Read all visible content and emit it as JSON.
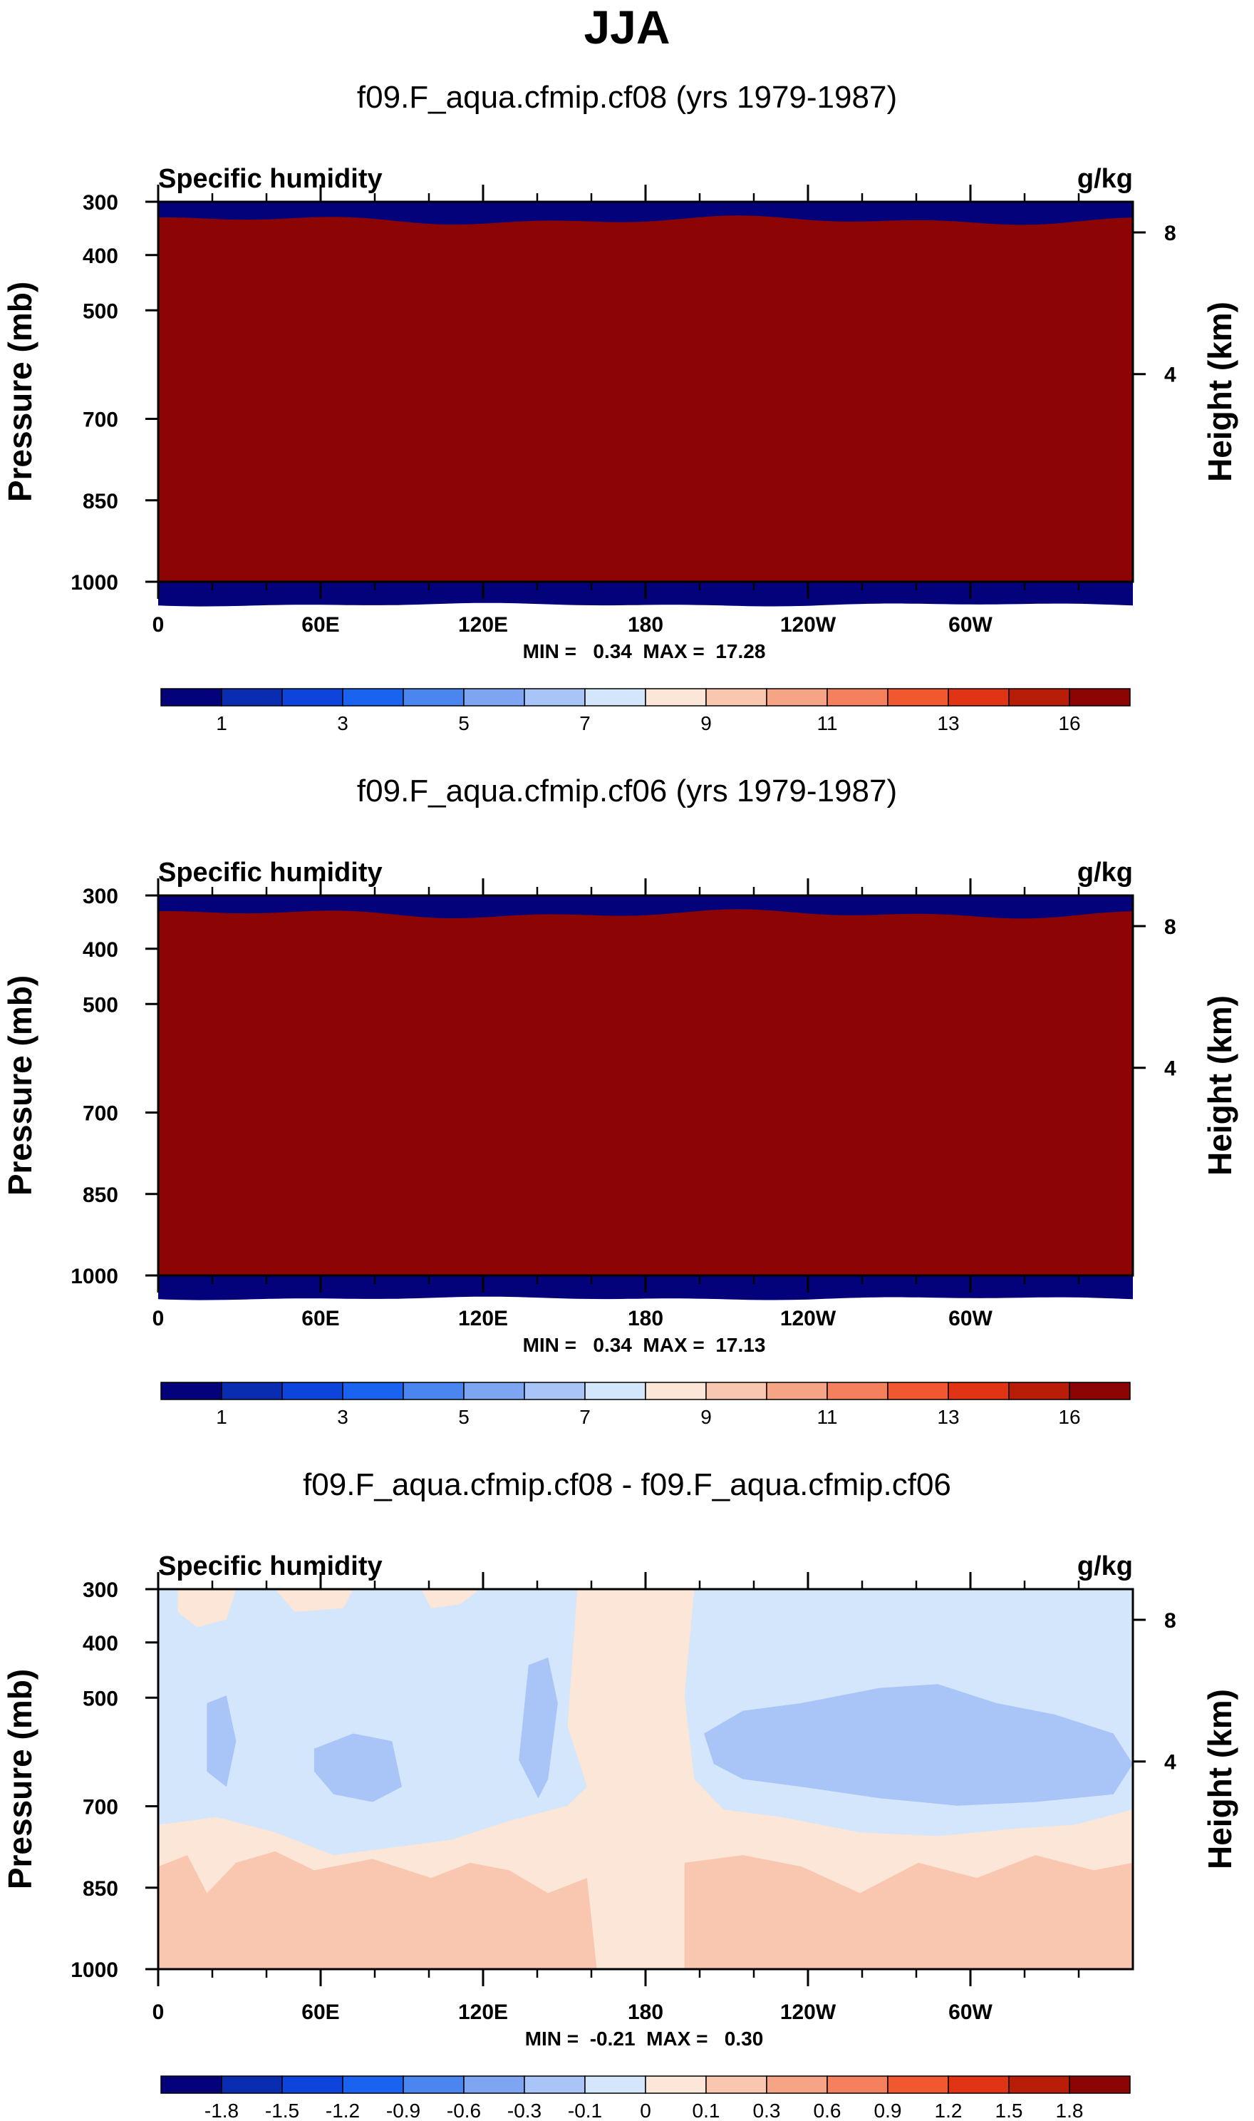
{
  "page": {
    "title": "JJA"
  },
  "chart_data": [
    {
      "type": "heatmap",
      "title": "f09.F_aqua.cfmip.cf08 (yrs 1979-1987)",
      "left_label": "Specific humidity",
      "units": "g/kg",
      "ylabel": "Pressure (mb)",
      "y2label": "Height (km)",
      "x_ticks": [
        "0",
        "60E",
        "120E",
        "180",
        "120W",
        "60W"
      ],
      "y_ticks": [
        "300",
        "400",
        "500",
        "700",
        "850",
        "1000"
      ],
      "y2_ticks": [
        "8",
        "4"
      ],
      "stats": "MIN =   0.34  MAX =  17.28",
      "min": 0.34,
      "max": 17.28,
      "pattern": "bands",
      "band_levels": [
        0.5,
        1,
        2,
        3,
        4,
        5,
        6,
        7,
        8,
        9,
        10,
        11,
        12,
        13,
        14,
        16
      ],
      "colorbar_labels": [
        "1",
        "3",
        "5",
        "7",
        "9",
        "11",
        "13",
        "16"
      ]
    },
    {
      "type": "heatmap",
      "title": "f09.F_aqua.cfmip.cf06 (yrs 1979-1987)",
      "left_label": "Specific humidity",
      "units": "g/kg",
      "ylabel": "Pressure (mb)",
      "y2label": "Height (km)",
      "x_ticks": [
        "0",
        "60E",
        "120E",
        "180",
        "120W",
        "60W"
      ],
      "y_ticks": [
        "300",
        "400",
        "500",
        "700",
        "850",
        "1000"
      ],
      "y2_ticks": [
        "8",
        "4"
      ],
      "stats": "MIN =   0.34  MAX =  17.13",
      "min": 0.34,
      "max": 17.13,
      "pattern": "bands",
      "band_levels": [
        0.5,
        1,
        2,
        3,
        4,
        5,
        6,
        7,
        8,
        9,
        10,
        11,
        12,
        13,
        14,
        16
      ],
      "colorbar_labels": [
        "1",
        "3",
        "5",
        "7",
        "9",
        "11",
        "13",
        "16"
      ]
    },
    {
      "type": "heatmap",
      "title": "f09.F_aqua.cfmip.cf08 - f09.F_aqua.cfmip.cf06",
      "left_label": "Specific humidity",
      "units": "g/kg",
      "ylabel": "Pressure (mb)",
      "y2label": "Height (km)",
      "x_ticks": [
        "0",
        "60E",
        "120E",
        "180",
        "120W",
        "60W"
      ],
      "y_ticks": [
        "300",
        "400",
        "500",
        "700",
        "850",
        "1000"
      ],
      "y2_ticks": [
        "8",
        "4"
      ],
      "stats": "MIN =  -0.21  MAX =   0.30",
      "min": -0.21,
      "max": 0.3,
      "pattern": "difference",
      "colorbar_labels": [
        "-1.8",
        "-1.5",
        "-1.2",
        "-0.9",
        "-0.6",
        "-0.3",
        "-0.1",
        "0",
        "0.1",
        "0.3",
        "0.6",
        "0.9",
        "1.2",
        "1.5",
        "1.8"
      ]
    }
  ],
  "colors": {
    "palette": [
      "#04027a",
      "#0a2cb0",
      "#0d45dc",
      "#1963f0",
      "#4a85f0",
      "#7ea5f2",
      "#a9c4f6",
      "#d3e6fb",
      "#fbe6d8",
      "#f9c6b0",
      "#f6a486",
      "#f4805e",
      "#f1582f",
      "#e03414",
      "#b81d08",
      "#8d0404"
    ],
    "axis": "#000000",
    "diff_light_blue": "#d3e6fb",
    "diff_mid_blue": "#a9c4f6",
    "diff_light_peach": "#fbe6d8",
    "diff_peach": "#f9c6b0"
  }
}
